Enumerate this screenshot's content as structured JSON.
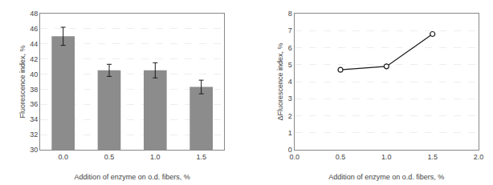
{
  "chart_data": [
    {
      "type": "bar",
      "categories": [
        "0.0",
        "0.5",
        "1.0",
        "1.5"
      ],
      "values": [
        45.0,
        40.5,
        40.5,
        38.3
      ],
      "errors": [
        1.2,
        0.8,
        1.0,
        0.9
      ],
      "color": "#8c8c8c",
      "xlabel": "Addition of enzyme on o.d. fibers, %",
      "ylabel": "Fluorescence index, %",
      "ylim": [
        30,
        48
      ],
      "yticks": [
        30,
        32,
        34,
        36,
        38,
        40,
        42,
        44,
        46,
        48
      ],
      "grid": true
    },
    {
      "type": "line",
      "x": [
        0.5,
        1.0,
        1.5
      ],
      "values": [
        4.7,
        4.9,
        6.8
      ],
      "color": "#1a1a1a",
      "marker": "circle",
      "xlabel": "Addition of enzyme on o.d. fibers, %",
      "ylabel": "ΔFluorescence index, %",
      "xlim": [
        0.0,
        2.0
      ],
      "ylim": [
        0,
        8
      ],
      "xticks": [
        {
          "value": 0.0,
          "label": "0.0"
        },
        0.5,
        {
          "value": 1.0,
          "label": "1.0"
        },
        1.5,
        {
          "value": 2.0,
          "label": "2.0"
        }
      ],
      "yticks": [
        0,
        1,
        2,
        3,
        4,
        5,
        6,
        7,
        8
      ],
      "grid": true
    }
  ]
}
